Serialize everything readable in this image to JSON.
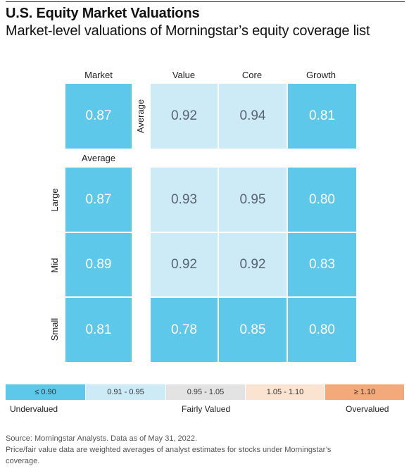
{
  "title": "U.S. Equity Market Valuations",
  "subtitle": "Market-level valuations of Morningstar’s equity coverage list",
  "chart_data": {
    "type": "heatmap",
    "column_headers": [
      "Market",
      "Value",
      "Core",
      "Growth"
    ],
    "row_labels": [
      "Average",
      "Large",
      "Mid",
      "Small"
    ],
    "market_average_label": "Average",
    "values": {
      "market_average": 0.87,
      "style_average": {
        "Value": 0.92,
        "Core": 0.94,
        "Growth": 0.81
      },
      "Large": {
        "Market": 0.87,
        "Value": 0.93,
        "Core": 0.95,
        "Growth": 0.8
      },
      "Mid": {
        "Market": 0.89,
        "Value": 0.92,
        "Core": 0.92,
        "Growth": 0.83
      },
      "Small": {
        "Market": 0.81,
        "Value": 0.78,
        "Core": 0.85,
        "Growth": 0.8
      }
    },
    "display": {
      "market_average": "0.87",
      "style_average": [
        "0.92",
        "0.94",
        "0.81"
      ],
      "grid": [
        [
          "0.87",
          "0.93",
          "0.95",
          "0.80"
        ],
        [
          "0.89",
          "0.92",
          "0.92",
          "0.83"
        ],
        [
          "0.81",
          "0.78",
          "0.85",
          "0.80"
        ]
      ]
    },
    "legend": {
      "bins": [
        {
          "label": "≤ 0.90",
          "color": "#5ec8ea"
        },
        {
          "label": "0.91 - 0.95",
          "color": "#cdebf7"
        },
        {
          "label": "0.95 - 1.05",
          "color": "#e3e3e3"
        },
        {
          "label": "1.05 - 1.10",
          "color": "#fbe3d2"
        },
        {
          "label": "≥ 1.10",
          "color": "#f4a97a"
        }
      ],
      "words": [
        "Undervalued",
        "Fairly Valued",
        "Overvalued"
      ]
    }
  },
  "footer": {
    "line1": "Source: Morningstar Analysts. Data as of May 31, 2022.",
    "line2": "Price/fair value data are weighted averages of analyst estimates for stocks under Morningstar’s",
    "line3": "coverage."
  }
}
